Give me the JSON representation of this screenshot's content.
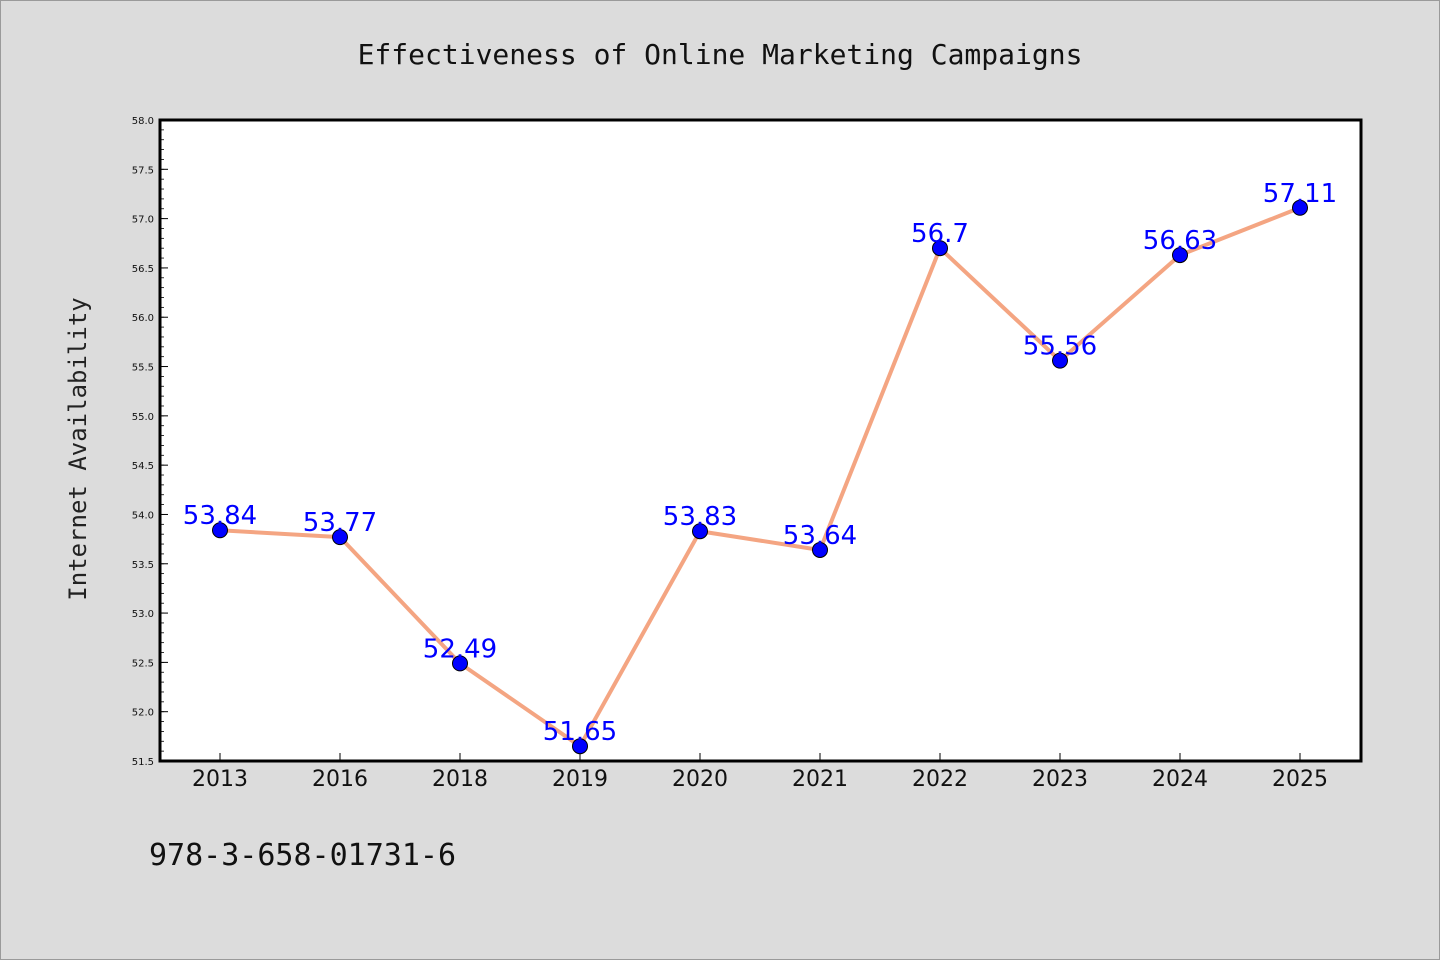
{
  "chart_data": {
    "type": "line",
    "title": "Effectiveness of Online Marketing Campaigns",
    "xlabel": "",
    "ylabel": "Internet Availability",
    "categories": [
      "2013",
      "2016",
      "2018",
      "2019",
      "2020",
      "2021",
      "2022",
      "2023",
      "2024",
      "2025"
    ],
    "series": [
      {
        "values": [
          53.84,
          53.77,
          52.49,
          51.65,
          53.83,
          53.64,
          56.7,
          55.56,
          56.63,
          57.11
        ],
        "labels": [
          "53.84",
          "53.77",
          "52.49",
          "51.65",
          "53.83",
          "53.64",
          "56.7",
          "55.56",
          "56.63",
          "57.11"
        ],
        "line_color": "#f4a582",
        "marker_color": "#0000ff"
      }
    ],
    "ylim": [
      51.5,
      58.0
    ],
    "yticks": [
      "51.5",
      "52.0",
      "52.5",
      "53.0",
      "53.5",
      "54.0",
      "54.5",
      "55.0",
      "55.5",
      "56.0",
      "56.5",
      "57.0",
      "57.5",
      "58.0"
    ],
    "grid": false,
    "legend": "none"
  },
  "annotation": "978-3-658-01731-6",
  "colors": {
    "background": "#dcdcdc",
    "plot_area": "#ffffff",
    "line": "#f4a582",
    "marker": "#0000ff",
    "data_label": "#0000ff"
  }
}
